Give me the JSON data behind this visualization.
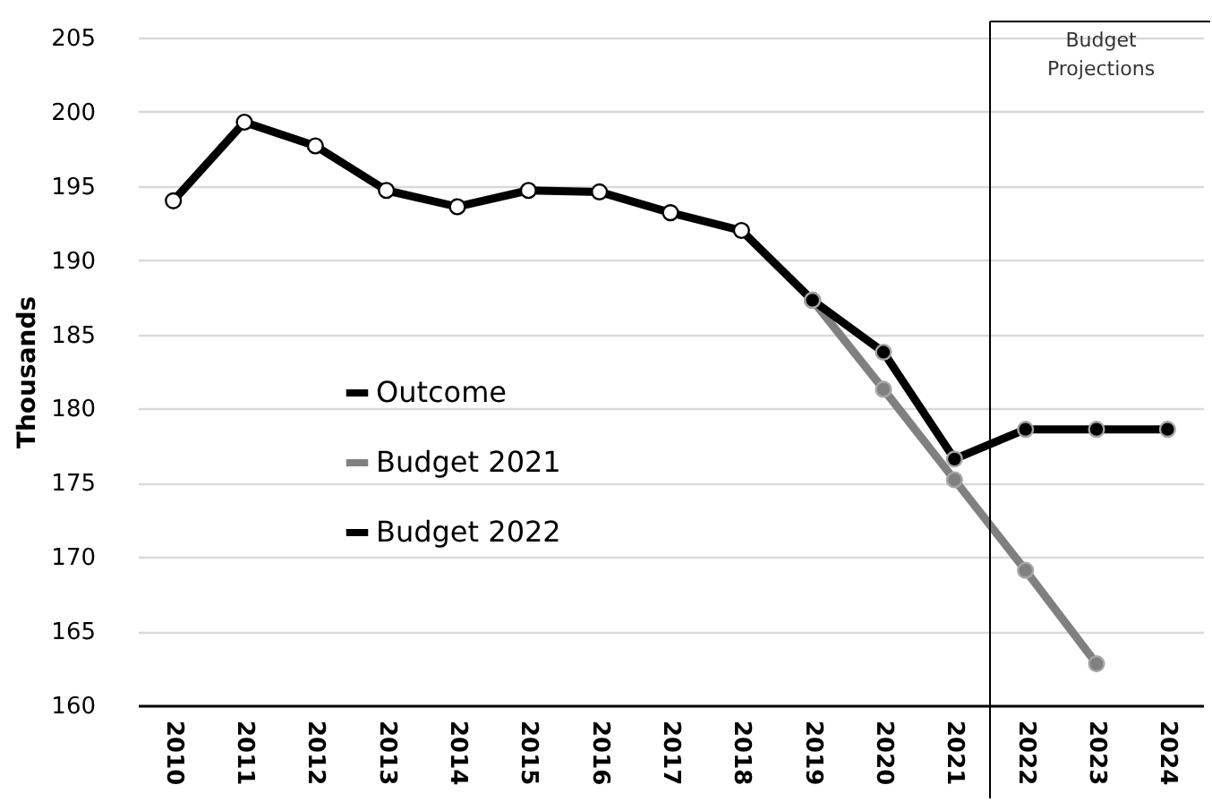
{
  "chart_data": {
    "type": "line",
    "ylabel": "Thousands",
    "xlim": [
      2009.5,
      2024.5
    ],
    "xticks": [
      2010,
      2011,
      2012,
      2013,
      2014,
      2015,
      2016,
      2017,
      2018,
      2019,
      2020,
      2021,
      2022,
      2023,
      2024
    ],
    "ylim": [
      160,
      205
    ],
    "yticks": [
      160,
      165,
      170,
      175,
      180,
      185,
      190,
      195,
      200,
      205
    ],
    "grid": "y",
    "legend": "left",
    "marker": "circle",
    "series": [
      {
        "name": "Outcome",
        "color": "#000000",
        "x": [
          2010,
          2011,
          2012,
          2013,
          2014,
          2015,
          2016,
          2017,
          2018,
          2019
        ],
        "values": [
          194.0,
          199.3,
          197.7,
          194.7,
          193.6,
          194.7,
          194.6,
          193.2,
          192.0,
          187.3
        ]
      },
      {
        "name": "Budget 2021",
        "color": "#808080",
        "x": [
          2019,
          2020,
          2021,
          2022,
          2023
        ],
        "values": [
          187.3,
          181.3,
          175.2,
          169.1,
          162.8
        ]
      },
      {
        "name": "Budget 2022",
        "color": "#000000",
        "x": [
          2019,
          2020,
          2021,
          2022,
          2023,
          2024
        ],
        "values": [
          187.3,
          183.8,
          176.6,
          178.6,
          178.6,
          178.6
        ]
      }
    ],
    "ref_lines": [
      {
        "axis": "x",
        "value": 2021.5,
        "label": "Budget Projections",
        "color": "#000000"
      }
    ]
  }
}
